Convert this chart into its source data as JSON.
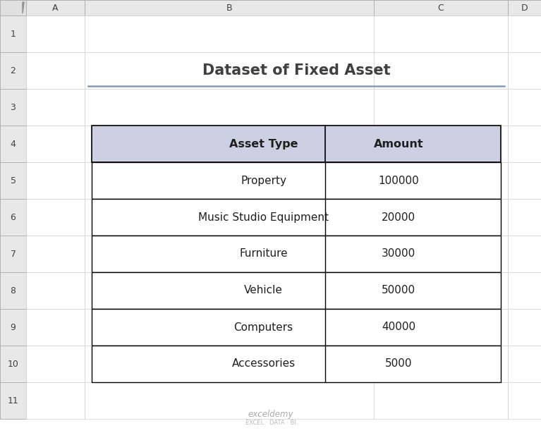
{
  "title": "Dataset of Fixed Asset",
  "title_color": "#404040",
  "title_fontsize": 15,
  "header_row": [
    "Asset Type",
    "Amount"
  ],
  "data_rows": [
    [
      "Property",
      "100000"
    ],
    [
      "Music Studio Equipment",
      "20000"
    ],
    [
      "Furniture",
      "30000"
    ],
    [
      "Vehicle",
      "50000"
    ],
    [
      "Computers",
      "40000"
    ],
    [
      "Accessories",
      "5000"
    ]
  ],
  "header_bg": "#cdd0e3",
  "header_text_color": "#1f1f1f",
  "row_bg": "#ffffff",
  "row_text_color": "#1f1f1f",
  "grid_bg": "#f0f0f0",
  "col_header_bg": "#d0d0d0",
  "row_header_bg": "#d0d0d0",
  "spreadsheet_bg": "#ffffff",
  "border_color": "#000000",
  "col_header_border": "#a0a0a0",
  "underline_color": "#8899bb",
  "watermark_text": "exceldemy",
  "watermark_sub": "EXCEL · DATA · BI"
}
